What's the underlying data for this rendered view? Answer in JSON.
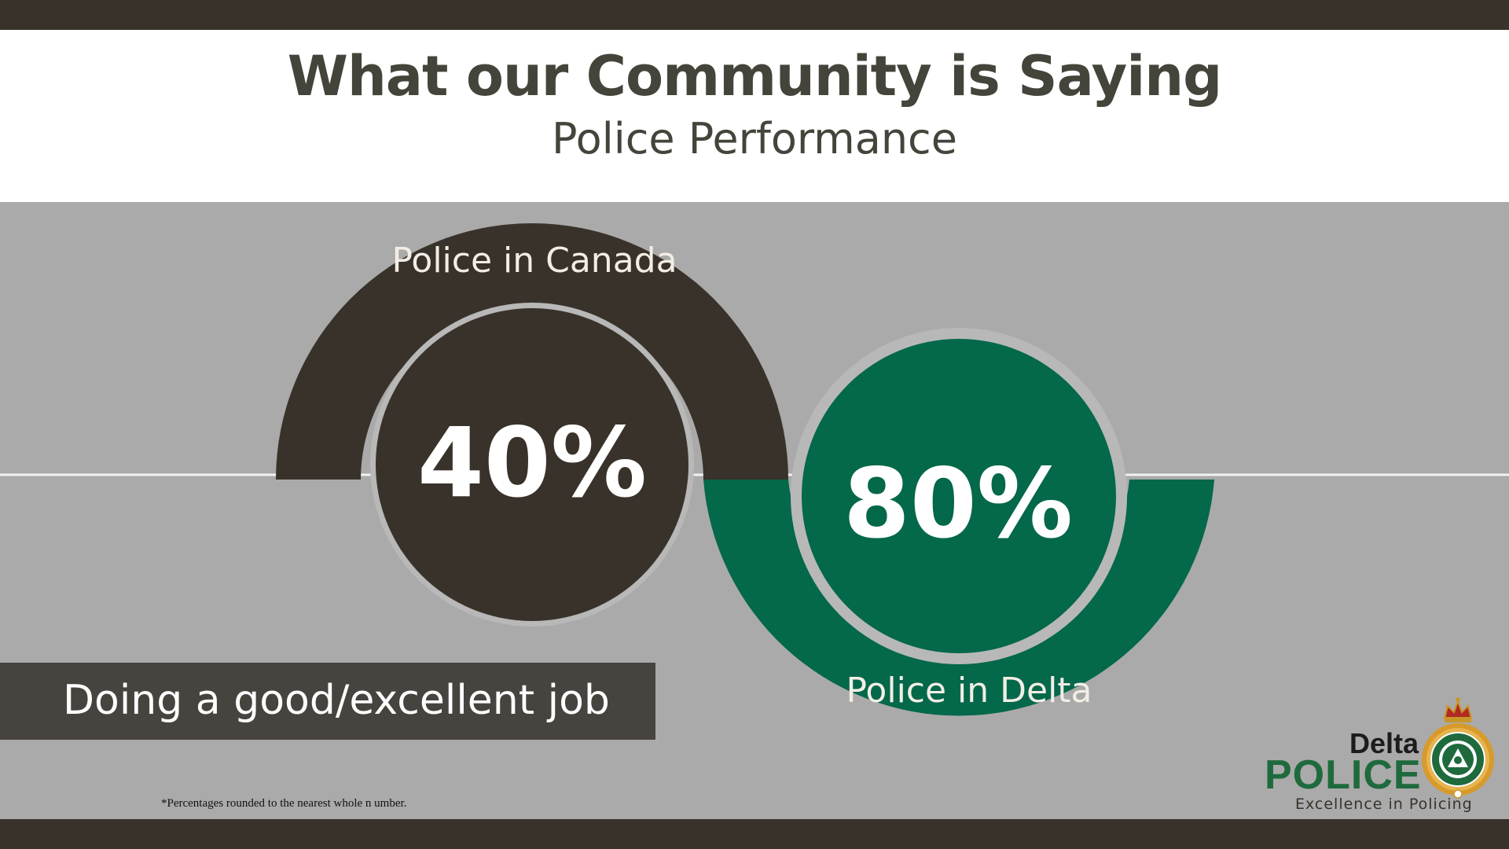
{
  "header": {
    "title": "What our Community is Saying",
    "subtitle": "Police Performance"
  },
  "metrics": [
    {
      "label": "Police in Canada",
      "value_text": "40%",
      "value": 40,
      "color": "#38322a"
    },
    {
      "label": "Police in Delta",
      "value_text": "80%",
      "value": 80,
      "color": "#04684a"
    }
  ],
  "caption": "Doing a good/excellent job",
  "footnote": "*Percentages rounded to the nearest whole n umber.",
  "logo": {
    "line1": "Delta",
    "line2": "POLICE",
    "tagline": "Excellence in Policing"
  },
  "colors": {
    "dark": "#38322a",
    "green": "#04684a",
    "background": "#aaaaaa",
    "title_text": "#45443b"
  }
}
